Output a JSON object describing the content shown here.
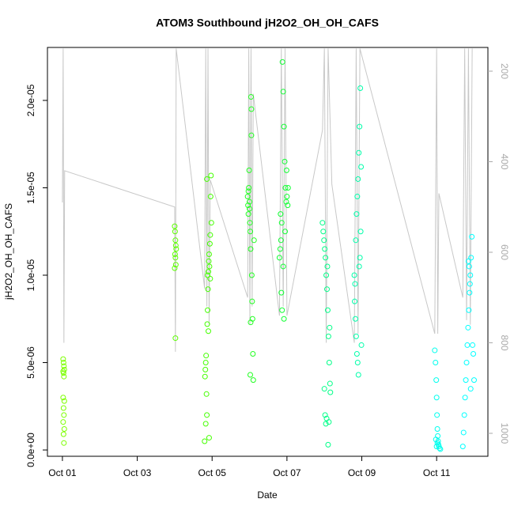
{
  "chart_data": {
    "type": "scatter",
    "title": "ATOM3 Southbound jH2O2_OH_OH_CAFS",
    "x_label": "Date",
    "y_label": "jH2O2_OH_OH_CAFS",
    "xlim": [
      0.6,
      12.37
    ],
    "xticks": [
      {
        "value": 1,
        "label": "Oct 01"
      },
      {
        "value": 3,
        "label": "Oct 03"
      },
      {
        "value": 5,
        "label": "Oct 05"
      },
      {
        "value": 7,
        "label": "Oct 07"
      },
      {
        "value": 9,
        "label": "Oct 09"
      },
      {
        "value": 11,
        "label": "Oct 11"
      }
    ],
    "ylim": [
      -3.6e-07,
      2.303e-05
    ],
    "yticks": [
      {
        "value": 0,
        "label": "0.0e+00"
      },
      {
        "value": 5e-06,
        "label": "5.0e-06"
      },
      {
        "value": 1e-05,
        "label": "1.0e-05"
      },
      {
        "value": 1.5e-05,
        "label": "1.5e-05"
      },
      {
        "value": 2e-05,
        "label": "2.0e-05"
      }
    ],
    "y2lim": [
      1050.7,
      147.6
    ],
    "y2ticks": [
      200,
      400,
      600,
      800,
      1000
    ],
    "series": [
      {
        "type": "line",
        "axis": "y2",
        "color": "#c8c8c8",
        "x": [
          1.0,
          1.02,
          1.04,
          1.06,
          4.0,
          4.02,
          4.04,
          4.8,
          4.83,
          4.86,
          4.89,
          4.92,
          4.95,
          5.95,
          5.98,
          6.01,
          6.04,
          6.07,
          6.1,
          6.8,
          6.85,
          6.9,
          6.95,
          7.0,
          7.95,
          8.0,
          8.05,
          8.1,
          8.2,
          8.8,
          8.85,
          8.9,
          8.95,
          10.95,
          11.0,
          11.03,
          11.06,
          11.7,
          11.75,
          11.8,
          11.85,
          11.9,
          11.95
        ],
        "values": [
          490,
          150,
          800,
          420,
          500,
          820,
          150,
          680,
          150,
          720,
          150,
          760,
          440,
          700,
          150,
          760,
          150,
          720,
          250,
          740,
          150,
          720,
          150,
          740,
          330,
          150,
          800,
          150,
          450,
          800,
          150,
          780,
          150,
          780,
          150,
          780,
          470,
          700,
          150,
          750,
          150,
          760,
          150
        ]
      },
      {
        "color": "#7cff00",
        "x": [
          1.02,
          1.03,
          1.04,
          1.05,
          1.03,
          1.04,
          1.02,
          1.05,
          1.03,
          1.04,
          1.02,
          1.05,
          1.03,
          1.04,
          1.02
        ],
        "values": [
          5.2e-06,
          5e-06,
          4.8e-06,
          4.6e-06,
          4.4e-06,
          4.2e-06,
          3e-06,
          2.8e-06,
          2.4e-06,
          2e-06,
          1.6e-06,
          1.2e-06,
          9e-07,
          4e-07,
          4.5e-06
        ]
      },
      {
        "color": "#5cff00",
        "x": [
          4.0,
          4.01,
          4.02,
          4.03,
          4.04,
          4.01,
          4.02,
          4.03,
          4.0,
          4.02
        ],
        "values": [
          1.28e-05,
          1.25e-05,
          1.2e-05,
          1.17e-05,
          1.15e-05,
          1.12e-05,
          1.1e-05,
          1.06e-05,
          1.04e-05,
          6.4e-06
        ]
      },
      {
        "color": "#44ff00",
        "x": [
          4.8,
          4.81,
          4.82,
          4.83,
          4.84,
          4.85,
          4.86,
          4.87,
          4.88,
          4.89,
          4.9,
          4.91,
          4.92,
          4.93,
          4.94,
          4.95,
          4.96,
          4.97,
          4.98,
          4.86,
          4.83,
          4.9,
          4.95,
          4.88,
          4.92
        ],
        "values": [
          5e-07,
          4.2e-06,
          4.6e-06,
          5e-06,
          5.4e-06,
          3.2e-06,
          2e-06,
          7.2e-06,
          8e-06,
          9.2e-06,
          1.02e-05,
          1.08e-05,
          1.12e-05,
          1.05e-05,
          1.18e-05,
          1.23e-05,
          1.45e-05,
          1.57e-05,
          1.3e-05,
          1.55e-05,
          1.5e-06,
          6.8e-06,
          9.8e-06,
          1e-05,
          7e-07
        ]
      },
      {
        "color": "#22ff22",
        "x": [
          5.95,
          5.96,
          5.97,
          5.98,
          5.99,
          6.0,
          6.01,
          6.02,
          6.03,
          6.04,
          6.05,
          6.06,
          6.07,
          6.08,
          6.09,
          6.1,
          6.02,
          6.05,
          6.0,
          5.97,
          6.12,
          6.03
        ],
        "values": [
          1.45e-05,
          1.4e-05,
          1.35e-05,
          1.5e-05,
          1.6e-05,
          1.42e-05,
          1.3e-05,
          1.25e-05,
          1.15e-05,
          2.02e-05,
          1.95e-05,
          1e-05,
          8.5e-06,
          7.5e-06,
          5.5e-06,
          4e-06,
          4.3e-06,
          1.8e-05,
          1.38e-05,
          1.48e-05,
          1.2e-05,
          7.3e-06
        ]
      },
      {
        "color": "#11ff33",
        "x": [
          6.8,
          6.82,
          6.84,
          6.86,
          6.88,
          6.9,
          6.92,
          6.94,
          6.96,
          6.98,
          7.0,
          7.02,
          6.85,
          6.87,
          6.9,
          6.95,
          6.83,
          6.99,
          6.92,
          7.03
        ],
        "values": [
          1.1e-05,
          1.15e-05,
          1.2e-05,
          1.3e-05,
          2.22e-05,
          2.05e-05,
          1.85e-05,
          1.65e-05,
          1.5e-05,
          1.42e-05,
          1.45e-05,
          1.4e-05,
          9e-06,
          8e-06,
          1.05e-05,
          1.25e-05,
          1.35e-05,
          1.6e-05,
          7.5e-06,
          1.5e-05
        ]
      },
      {
        "color": "#00ff88",
        "x": [
          7.95,
          7.97,
          7.99,
          8.01,
          8.03,
          8.05,
          8.07,
          8.09,
          8.11,
          8.13,
          8.15,
          8.0,
          8.02,
          8.04,
          8.06,
          8.1,
          8.12,
          8.08,
          8.14,
          8.16
        ],
        "values": [
          1.3e-05,
          1.25e-05,
          1.2e-05,
          1.15e-05,
          1.1e-05,
          1e-05,
          9.2e-06,
          8e-06,
          6.5e-06,
          5e-06,
          3.8e-06,
          3.5e-06,
          2e-06,
          1.5e-06,
          1.8e-06,
          3e-07,
          1.6e-06,
          1.05e-05,
          7e-06,
          3.3e-06
        ]
      },
      {
        "color": "#00ffaa",
        "x": [
          8.8,
          8.82,
          8.84,
          8.86,
          8.88,
          8.9,
          8.92,
          8.94,
          8.96,
          8.98,
          8.81,
          8.83,
          8.85,
          8.87,
          8.89,
          8.91,
          8.93,
          8.95,
          8.97,
          8.99
        ],
        "values": [
          1e-05,
          9.5e-06,
          1.2e-05,
          1.35e-05,
          1.45e-05,
          1.55e-05,
          1.7e-05,
          1.85e-05,
          2.07e-05,
          1.62e-05,
          8.5e-06,
          7.5e-06,
          6.5e-06,
          5.5e-06,
          5e-06,
          4.3e-06,
          1.05e-05,
          1.1e-05,
          1.25e-05,
          6e-06
        ]
      },
      {
        "color": "#00ffee",
        "x": [
          10.95,
          10.97,
          10.99,
          11.0,
          11.01,
          11.02,
          11.03,
          11.04,
          11.05,
          11.06,
          11.08,
          11.1,
          10.98,
          11.0,
          11.02
        ],
        "values": [
          5.7e-06,
          5e-06,
          4e-06,
          3e-06,
          2e-06,
          1.2e-06,
          8e-07,
          5e-07,
          3e-07,
          2e-07,
          1e-07,
          5e-08,
          6e-07,
          2e-07,
          4e-07
        ]
      },
      {
        "color": "#00ffff",
        "x": [
          11.7,
          11.72,
          11.74,
          11.76,
          11.78,
          11.8,
          11.82,
          11.84,
          11.86,
          11.88,
          11.9,
          11.92,
          11.94,
          11.96,
          11.98,
          12.0,
          11.85,
          11.87,
          11.89,
          11.91
        ],
        "values": [
          2e-07,
          1e-06,
          2e-06,
          3e-06,
          4e-06,
          5e-06,
          6e-06,
          7e-06,
          8e-06,
          9e-06,
          1e-05,
          1.1e-05,
          1.22e-05,
          6e-06,
          5.5e-06,
          4e-06,
          1.08e-05,
          1.05e-05,
          9.5e-06,
          3.5e-06
        ]
      }
    ]
  }
}
